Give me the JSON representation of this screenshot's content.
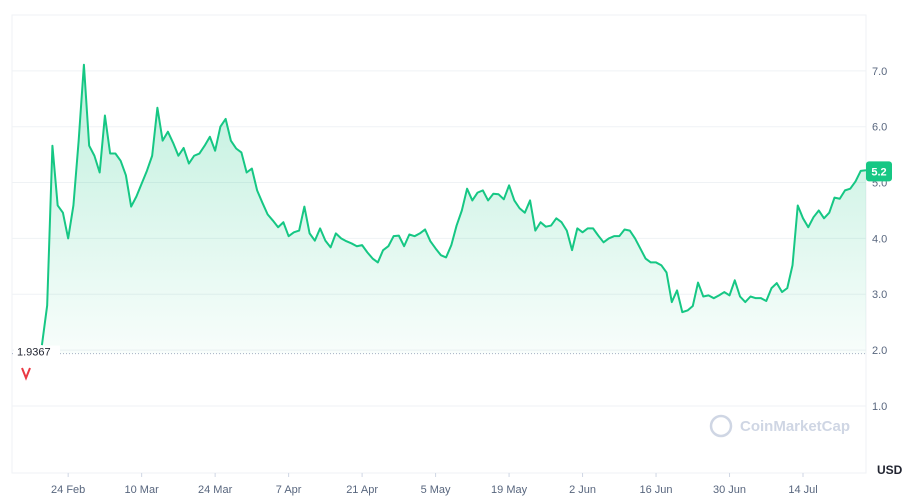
{
  "chart_data": {
    "type": "line",
    "x": [
      50,
      51,
      52,
      53,
      54,
      55,
      56,
      57,
      58,
      59,
      60,
      61,
      62,
      63,
      64,
      65,
      66,
      67,
      68,
      69,
      70,
      71,
      72,
      73,
      74,
      75,
      76,
      77,
      78,
      79,
      80,
      81,
      82,
      83,
      84,
      85,
      86,
      87,
      88,
      89,
      90,
      91,
      92,
      93,
      94,
      95,
      96,
      97,
      98,
      99,
      100,
      101,
      102,
      103,
      104,
      105,
      106,
      107,
      108,
      109,
      110,
      111,
      112,
      113,
      114,
      115,
      116,
      117,
      118,
      119,
      120,
      121,
      122,
      123,
      124,
      125,
      126,
      127,
      128,
      129,
      130,
      131,
      132,
      133,
      134,
      135,
      136,
      137,
      138,
      139,
      140,
      141,
      142,
      143,
      144,
      145,
      146,
      147,
      148,
      149,
      150,
      151,
      152,
      153,
      154,
      155,
      156,
      157,
      158,
      159,
      160,
      161,
      162,
      163,
      164,
      165,
      166,
      167,
      168,
      169,
      170,
      171,
      172,
      173,
      174,
      175,
      176,
      177,
      178,
      179,
      180,
      181,
      182,
      183,
      184,
      185,
      186,
      187,
      188,
      189,
      190,
      191,
      192,
      193,
      194,
      195,
      196,
      197,
      198,
      199,
      200,
      201,
      202,
      203,
      204,
      205,
      206,
      207
    ],
    "values": [
      2.09,
      2.8,
      5.66,
      4.59,
      4.46,
      4.0,
      4.59,
      5.75,
      7.11,
      5.66,
      5.48,
      5.18,
      6.2,
      5.52,
      5.52,
      5.39,
      5.13,
      4.57,
      4.75,
      4.98,
      5.21,
      5.48,
      6.34,
      5.75,
      5.91,
      5.71,
      5.48,
      5.62,
      5.34,
      5.48,
      5.52,
      5.66,
      5.82,
      5.57,
      6.0,
      6.14,
      5.75,
      5.61,
      5.54,
      5.18,
      5.25,
      4.86,
      4.64,
      4.43,
      4.32,
      4.2,
      4.29,
      4.04,
      4.11,
      4.14,
      4.57,
      4.09,
      3.96,
      4.18,
      3.96,
      3.84,
      4.09,
      4.0,
      3.95,
      3.91,
      3.86,
      3.88,
      3.75,
      3.64,
      3.57,
      3.79,
      3.86,
      4.04,
      4.05,
      3.86,
      4.07,
      4.04,
      4.09,
      4.16,
      3.95,
      3.82,
      3.7,
      3.66,
      3.88,
      4.23,
      4.5,
      4.89,
      4.68,
      4.82,
      4.86,
      4.68,
      4.8,
      4.79,
      4.7,
      4.95,
      4.68,
      4.54,
      4.46,
      4.68,
      4.14,
      4.29,
      4.21,
      4.23,
      4.36,
      4.29,
      4.14,
      3.79,
      4.18,
      4.11,
      4.18,
      4.18,
      4.05,
      3.93,
      4.0,
      4.04,
      4.04,
      4.16,
      4.14,
      4.0,
      3.82,
      3.64,
      3.57,
      3.57,
      3.52,
      3.39,
      2.86,
      3.07,
      2.68,
      2.71,
      2.79,
      3.21,
      2.96,
      2.98,
      2.93,
      2.98,
      3.04,
      2.98,
      3.25,
      2.96,
      2.86,
      2.96,
      2.93,
      2.93,
      2.88,
      3.11,
      3.2,
      3.04,
      3.11,
      3.52,
      4.59,
      4.36,
      4.2,
      4.38,
      4.5,
      4.36,
      4.46,
      4.73,
      4.71,
      4.86,
      4.89,
      5.02,
      5.21,
      5.22
    ],
    "color": "#16c784",
    "xlim": [
      44.3,
      207
    ],
    "xticks": [
      {
        "value": 55,
        "label": "24 Feb"
      },
      {
        "value": 69,
        "label": "10 Mar"
      },
      {
        "value": 83,
        "label": "24 Mar"
      },
      {
        "value": 97,
        "label": "7 Apr"
      },
      {
        "value": 111,
        "label": "21 Apr"
      },
      {
        "value": 125,
        "label": "5 May"
      },
      {
        "value": 139,
        "label": "19 May"
      },
      {
        "value": 153,
        "label": "2 Jun"
      },
      {
        "value": 167,
        "label": "16 Jun"
      },
      {
        "value": 181,
        "label": "30 Jun"
      },
      {
        "value": 195,
        "label": "14 Jul"
      }
    ],
    "ylim": [
      -0.2,
      8.0
    ],
    "yticks": [
      {
        "value": 1,
        "label": "1.0"
      },
      {
        "value": 2,
        "label": "2.0"
      },
      {
        "value": 3,
        "label": "3.0"
      },
      {
        "value": 4,
        "label": "4.0"
      },
      {
        "value": 5,
        "label": "5.0"
      },
      {
        "value": 6,
        "label": "6.0"
      },
      {
        "value": 7,
        "label": "7.0"
      }
    ],
    "grid": true,
    "reference_price": 1.9367,
    "last_price": 5.2,
    "y_unit": "USD",
    "watermark": "CoinMarketCap"
  }
}
